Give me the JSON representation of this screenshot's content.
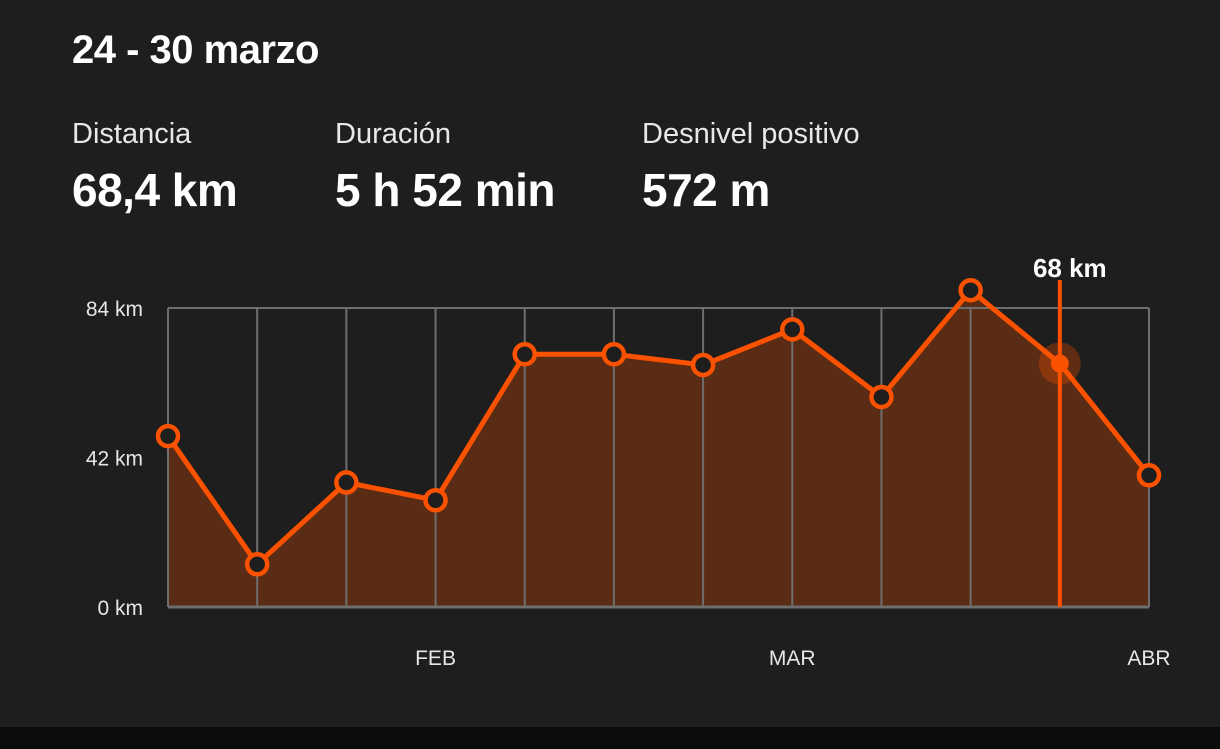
{
  "header": {
    "title": "24 - 30 marzo"
  },
  "stats": [
    {
      "label": "Distancia",
      "value": "68,4 km"
    },
    {
      "label": "Duración",
      "value": "5 h 52 min"
    },
    {
      "label": "Desnivel positivo",
      "value": "572 m"
    }
  ],
  "colors": {
    "accent": "#fc5200",
    "background": "#1e1e1e",
    "grid": "#6e6e6e"
  },
  "chart_data": {
    "type": "area",
    "title": "",
    "xlabel": "",
    "ylabel": "",
    "ylim": [
      0,
      84
    ],
    "y_ticks": [
      {
        "value": 0,
        "label": "0 km"
      },
      {
        "value": 42,
        "label": "42 km"
      },
      {
        "value": 84,
        "label": "84 km"
      }
    ],
    "x_ticks": [
      {
        "index": 3,
        "label": "FEB"
      },
      {
        "index": 7,
        "label": "MAR"
      },
      {
        "index": 11,
        "label": "ABR"
      }
    ],
    "values": [
      48,
      12,
      35,
      30,
      71,
      71,
      68,
      78,
      59,
      89,
      null,
      37
    ],
    "selected": {
      "position": 10,
      "value": 68.4,
      "label": "68 km"
    },
    "grid": true,
    "legend": "none"
  }
}
